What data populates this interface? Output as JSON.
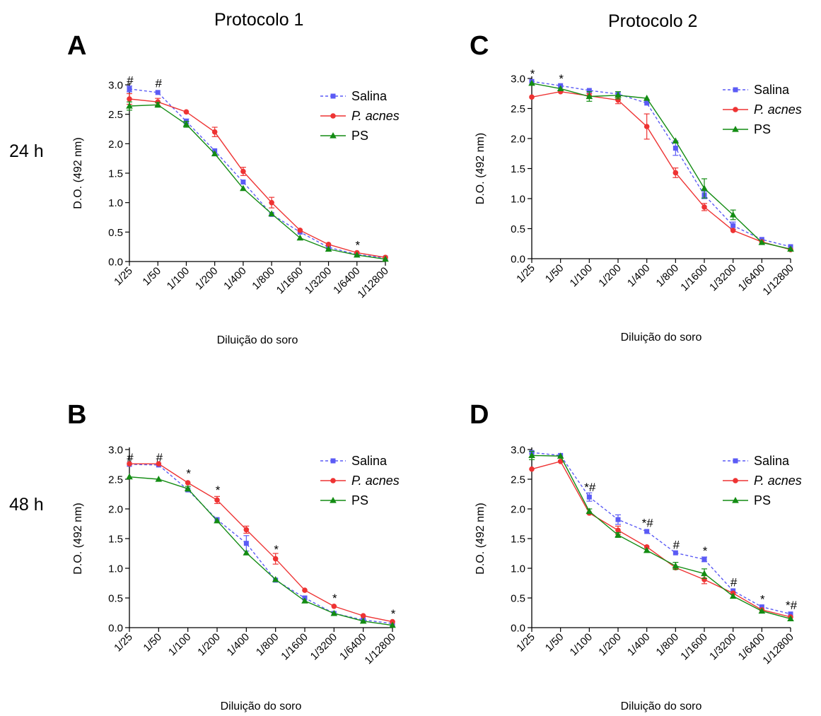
{
  "figure": {
    "protocol_1": "Protocolo 1",
    "protocol_2": "Protocolo 2",
    "row_24h": "24 h",
    "row_48h": "48 h"
  },
  "series_style": [
    {
      "name": "Salina",
      "color": "#5b5bf5",
      "marker": "square",
      "dash": true,
      "italic": false
    },
    {
      "name": "P. acnes",
      "color": "#ee3333",
      "marker": "circle",
      "dash": false,
      "italic": true
    },
    {
      "name": "PS",
      "color": "#138c13",
      "marker": "triangle",
      "dash": false,
      "italic": false
    }
  ],
  "chart_data": [
    {
      "panel": "A",
      "type": "line",
      "xlabel": "Diluição do soro",
      "ylabel": "D.O. (492 nm)",
      "categories": [
        "1/25",
        "1/50",
        "1/100",
        "1/200",
        "1/400",
        "1/800",
        "1/1600",
        "1/3200",
        "1/6400",
        "1/12800"
      ],
      "ylim": [
        0,
        3.0
      ],
      "yticks": [
        "0.0",
        "0.5",
        "1.0",
        "1.5",
        "2.0",
        "2.5",
        "3.0"
      ],
      "legend": "top-right",
      "series": [
        {
          "name": "Salina",
          "values": [
            2.93,
            2.87,
            2.38,
            1.88,
            1.35,
            0.8,
            0.5,
            0.24,
            0.12,
            0.06
          ],
          "errors": [
            0.05,
            0.03,
            0.04,
            0.03,
            0.03,
            0.03,
            0.02,
            0.02,
            0.02,
            0.01
          ]
        },
        {
          "name": "P. acnes",
          "values": [
            2.76,
            2.71,
            2.54,
            2.2,
            1.53,
            1.0,
            0.53,
            0.29,
            0.15,
            0.07
          ],
          "errors": [
            0.09,
            0.06,
            0.03,
            0.08,
            0.07,
            0.09,
            0.03,
            0.02,
            0.02,
            0.01
          ]
        },
        {
          "name": "PS",
          "values": [
            2.64,
            2.66,
            2.33,
            1.83,
            1.24,
            0.81,
            0.4,
            0.21,
            0.11,
            0.04
          ],
          "errors": [
            0.07,
            0.04,
            0.05,
            0.03,
            0.03,
            0.03,
            0.03,
            0.02,
            0.01,
            0.01
          ]
        }
      ],
      "annotations": [
        {
          "x": "1/25",
          "y": 3.08,
          "text": "#"
        },
        {
          "x": "1/50",
          "y": 3.03,
          "text": "#"
        },
        {
          "x": "1/6400",
          "y": 0.28,
          "text": "*"
        }
      ]
    },
    {
      "panel": "B",
      "type": "line",
      "xlabel": "Diluição do soro",
      "ylabel": "D.O. (492 nm)",
      "categories": [
        "1/25",
        "1/50",
        "1/100",
        "1/200",
        "1/400",
        "1/800",
        "1/1600",
        "1/3200",
        "1/6400",
        "1/12800"
      ],
      "ylim": [
        0,
        3.0
      ],
      "yticks": [
        "0.0",
        "0.5",
        "1.0",
        "1.5",
        "2.0",
        "2.5",
        "3.0"
      ],
      "legend": "top-right",
      "series": [
        {
          "name": "Salina",
          "values": [
            2.75,
            2.74,
            2.32,
            1.82,
            1.42,
            0.8,
            0.5,
            0.24,
            0.13,
            0.07
          ],
          "errors": [
            0.03,
            0.03,
            0.03,
            0.03,
            0.13,
            0.03,
            0.03,
            0.02,
            0.02,
            0.01
          ]
        },
        {
          "name": "P. acnes",
          "values": [
            2.76,
            2.76,
            2.44,
            2.15,
            1.65,
            1.16,
            0.63,
            0.36,
            0.2,
            0.1
          ],
          "errors": [
            0.03,
            0.03,
            0.03,
            0.06,
            0.06,
            0.09,
            0.03,
            0.02,
            0.02,
            0.01
          ]
        },
        {
          "name": "PS",
          "values": [
            2.54,
            2.5,
            2.34,
            1.8,
            1.26,
            0.81,
            0.45,
            0.24,
            0.11,
            0.04
          ],
          "errors": [
            0.03,
            0.03,
            0.04,
            0.03,
            0.03,
            0.03,
            0.03,
            0.02,
            0.02,
            0.01
          ]
        }
      ],
      "annotations": [
        {
          "x": "1/25",
          "y": 2.87,
          "text": "#"
        },
        {
          "x": "1/50",
          "y": 2.87,
          "text": "#"
        },
        {
          "x": "1/100",
          "y": 2.6,
          "text": "*"
        },
        {
          "x": "1/200",
          "y": 2.32,
          "text": "*"
        },
        {
          "x": "1/800",
          "y": 1.32,
          "text": "*"
        },
        {
          "x": "1/3200",
          "y": 0.5,
          "text": "*"
        },
        {
          "x": "1/12800",
          "y": 0.24,
          "text": "*"
        }
      ]
    },
    {
      "panel": "C",
      "type": "line",
      "xlabel": "Diluição do soro",
      "ylabel": "D.O. (492 nm)",
      "categories": [
        "1/25",
        "1/50",
        "1/100",
        "1/200",
        "1/400",
        "1/800",
        "1/1600",
        "1/3200",
        "1/6400",
        "1/12800"
      ],
      "ylim": [
        0,
        3.0
      ],
      "yticks": [
        "0.0",
        "0.5",
        "1.0",
        "1.5",
        "2.0",
        "2.5",
        "3.0"
      ],
      "legend": "top-right",
      "series": [
        {
          "name": "Salina",
          "values": [
            2.95,
            2.88,
            2.8,
            2.74,
            2.59,
            1.84,
            1.06,
            0.55,
            0.32,
            0.2
          ],
          "errors": [
            0.03,
            0.03,
            0.03,
            0.03,
            0.03,
            0.12,
            0.06,
            0.06,
            0.03,
            0.02
          ]
        },
        {
          "name": "P. acnes",
          "values": [
            2.69,
            2.78,
            2.71,
            2.64,
            2.2,
            1.43,
            0.86,
            0.47,
            0.28,
            0.15
          ],
          "errors": [
            0.03,
            0.03,
            0.04,
            0.06,
            0.21,
            0.08,
            0.06,
            0.03,
            0.03,
            0.02
          ]
        },
        {
          "name": "PS",
          "values": [
            2.92,
            2.83,
            2.7,
            2.72,
            2.67,
            1.96,
            1.17,
            0.73,
            0.27,
            0.16
          ],
          "errors": [
            0.03,
            0.03,
            0.08,
            0.06,
            0.03,
            0.03,
            0.16,
            0.08,
            0.03,
            0.02
          ]
        }
      ],
      "annotations": [
        {
          "x": "1/25",
          "y": 3.08,
          "text": "*"
        },
        {
          "x": "1/50",
          "y": 3.0,
          "text": "*"
        }
      ]
    },
    {
      "panel": "D",
      "type": "line",
      "xlabel": "Diluição do soro",
      "ylabel": "D.O. (492 nm)",
      "categories": [
        "1/25",
        "1/50",
        "1/100",
        "1/200",
        "1/400",
        "1/800",
        "1/1600",
        "1/3200",
        "1/6400",
        "1/12800"
      ],
      "ylim": [
        0,
        3.0
      ],
      "yticks": [
        "0.0",
        "0.5",
        "1.0",
        "1.5",
        "2.0",
        "2.5",
        "3.0"
      ],
      "legend": "top-right",
      "series": [
        {
          "name": "Salina",
          "values": [
            2.95,
            2.9,
            2.2,
            1.82,
            1.62,
            1.26,
            1.15,
            0.62,
            0.35,
            0.23
          ],
          "errors": [
            0.03,
            0.03,
            0.07,
            0.08,
            0.03,
            0.03,
            0.04,
            0.03,
            0.03,
            0.02
          ]
        },
        {
          "name": "P. acnes",
          "values": [
            2.67,
            2.8,
            1.93,
            1.64,
            1.36,
            1.01,
            0.81,
            0.58,
            0.3,
            0.18
          ],
          "errors": [
            0.03,
            0.03,
            0.03,
            0.07,
            0.03,
            0.03,
            0.07,
            0.03,
            0.02,
            0.02
          ]
        },
        {
          "name": "PS",
          "values": [
            2.9,
            2.89,
            1.96,
            1.56,
            1.3,
            1.04,
            0.91,
            0.53,
            0.28,
            0.15
          ],
          "errors": [
            0.07,
            0.03,
            0.04,
            0.04,
            0.03,
            0.06,
            0.08,
            0.03,
            0.03,
            0.02
          ]
        }
      ],
      "annotations": [
        {
          "x": "1/100",
          "y": 2.37,
          "text": "*#"
        },
        {
          "x": "1/400",
          "y": 1.77,
          "text": "*#"
        },
        {
          "x": "1/800",
          "y": 1.4,
          "text": "#"
        },
        {
          "x": "1/1600",
          "y": 1.3,
          "text": "*"
        },
        {
          "x": "1/3200",
          "y": 0.77,
          "text": "#"
        },
        {
          "x": "1/6400",
          "y": 0.48,
          "text": "*"
        },
        {
          "x": "1/12800",
          "y": 0.38,
          "text": "*#"
        }
      ]
    }
  ]
}
